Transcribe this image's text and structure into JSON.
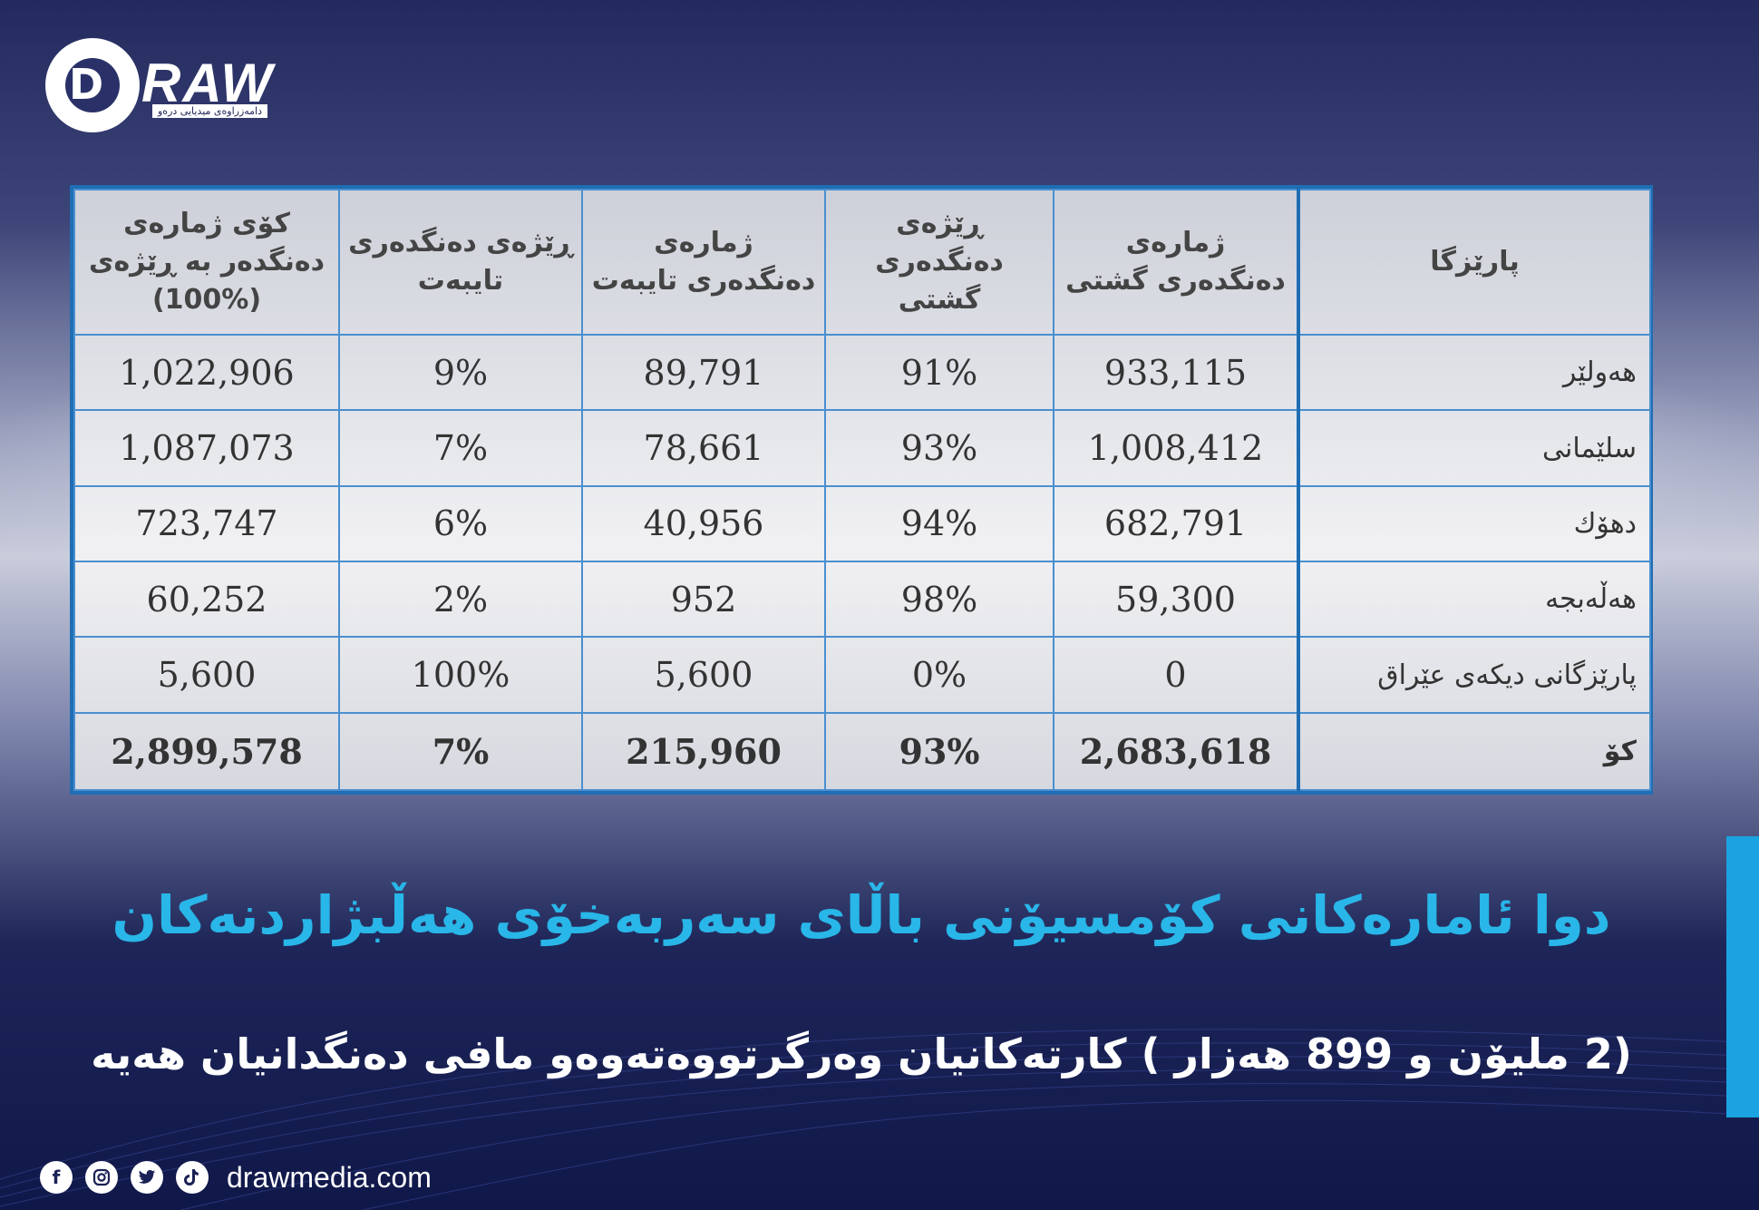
{
  "logo": {
    "letter": "D",
    "word": "RAW",
    "tagline": "دامەزراوەی میدیایی درەو"
  },
  "table": {
    "headers": {
      "party": "پارێزگا",
      "general_voters": "ژمارەی دەنگدەری گشتی",
      "general_ratio": "ڕێژەی دەنگدەری گشتی",
      "special_voters": "ژمارەی دەنگدەری تایبەت",
      "special_ratio": "ڕێژەی دەنگدەری تایبەت",
      "total": "كۆی ژمارەی دەنگدەر بە ڕێژەی (%100)"
    },
    "rows": [
      {
        "party": "هەولێر",
        "general": "933,115",
        "general_ratio": "91%",
        "special": "89,791",
        "special_ratio": "9%",
        "total": "1,022,906"
      },
      {
        "party": "سلێمانی",
        "general": "1,008,412",
        "general_ratio": "93%",
        "special": "78,661",
        "special_ratio": "7%",
        "total": "1,087,073"
      },
      {
        "party": "دهۆك",
        "general": "682,791",
        "general_ratio": "94%",
        "special": "40,956",
        "special_ratio": "6%",
        "total": "723,747"
      },
      {
        "party": "هەڵەبجە",
        "general": "59,300",
        "general_ratio": "98%",
        "special": "952",
        "special_ratio": "2%",
        "total": "60,252"
      },
      {
        "party": "پارێزگانی دیكەی عێراق",
        "general": "0",
        "general_ratio": "0%",
        "special": "5,600",
        "special_ratio": "100%",
        "total": "5,600"
      },
      {
        "party": "كۆ",
        "general": "2,683,618",
        "general_ratio": "93%",
        "special": "215,960",
        "special_ratio": "7%",
        "total": "2,899,578"
      }
    ]
  },
  "headline": "دوا ئامارەكانی كۆمسیۆنی باڵای سەربەخۆی هەڵبژاردنەكان",
  "subline": "(2 ملیۆن و 899 هەزار ) كارتەكانیان وەرگرتووەتەوەو مافی دەنگدانیان هەیە",
  "footer": {
    "site": "drawmedia.com",
    "icons": [
      "facebook-icon",
      "instagram-icon",
      "twitter-icon",
      "tiktok-icon"
    ]
  },
  "colors": {
    "accent": "#29b6e8",
    "table_border": "#1f6eb4",
    "background": "#1a2156"
  }
}
